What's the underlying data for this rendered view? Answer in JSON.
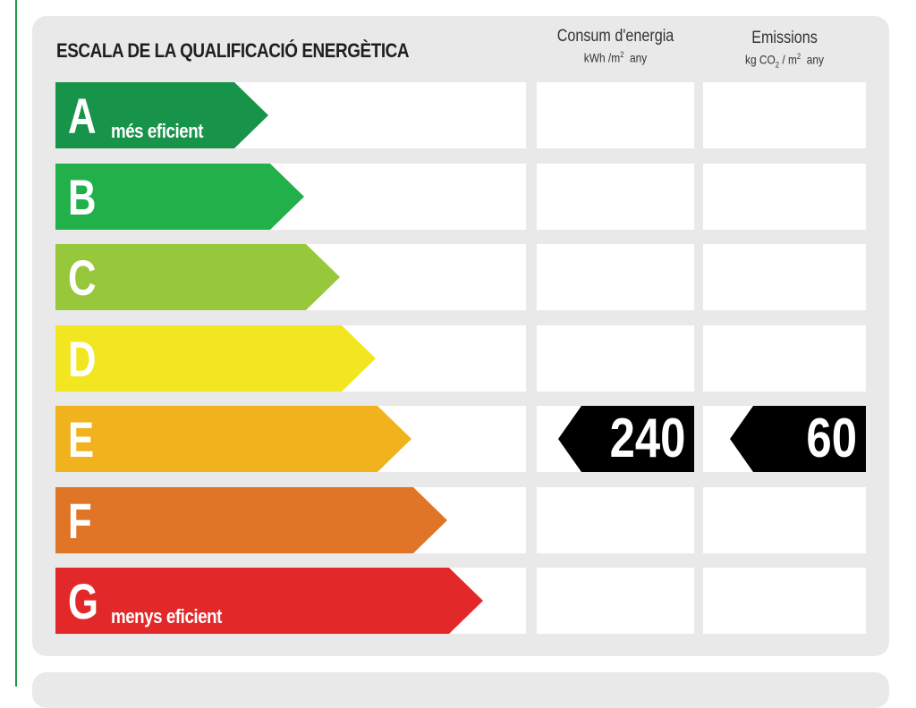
{
  "chart_data": {
    "type": "table",
    "title": "ESCALA DE LA QUALIFICACIÓ ENERGÈTICA",
    "columns": [
      {
        "label": "Consum d'energia",
        "unit_prefix": "kWh /m",
        "unit_sup": "2",
        "unit_suffix": "any"
      },
      {
        "label": "Emissions",
        "unit_prefix": "kg CO",
        "unit_sub": "2",
        "unit_mid": " / m",
        "unit_sup": "2",
        "unit_suffix": "any"
      }
    ],
    "classes": [
      {
        "letter": "A",
        "label": "més eficient",
        "color": "#17934a"
      },
      {
        "letter": "B",
        "label": "",
        "color": "#22b04b"
      },
      {
        "letter": "C",
        "label": "",
        "color": "#97c83c"
      },
      {
        "letter": "D",
        "label": "",
        "color": "#f2e620"
      },
      {
        "letter": "E",
        "label": "",
        "color": "#f0b31d"
      },
      {
        "letter": "F",
        "label": "",
        "color": "#e07528"
      },
      {
        "letter": "G",
        "label": "menys eficient",
        "color": "#e3282a"
      }
    ],
    "rating": {
      "class": "E",
      "energy_consumption": 240,
      "emissions": 60
    },
    "badge_color": "#000000"
  }
}
